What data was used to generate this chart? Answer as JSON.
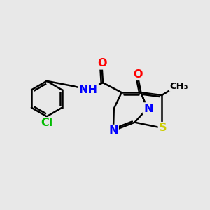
{
  "bg_color": "#e8e8e8",
  "atom_colors": {
    "C": "#000000",
    "N": "#0000ff",
    "O": "#ff0000",
    "S": "#cccc00",
    "Cl": "#00bb00",
    "H": "#000000"
  },
  "bond_color": "#000000",
  "bond_width": 1.8,
  "font_size": 10.5,
  "fig_size": [
    3.0,
    3.0
  ],
  "dpi": 100,
  "xlim": [
    0,
    10
  ],
  "ylim": [
    0,
    10
  ]
}
